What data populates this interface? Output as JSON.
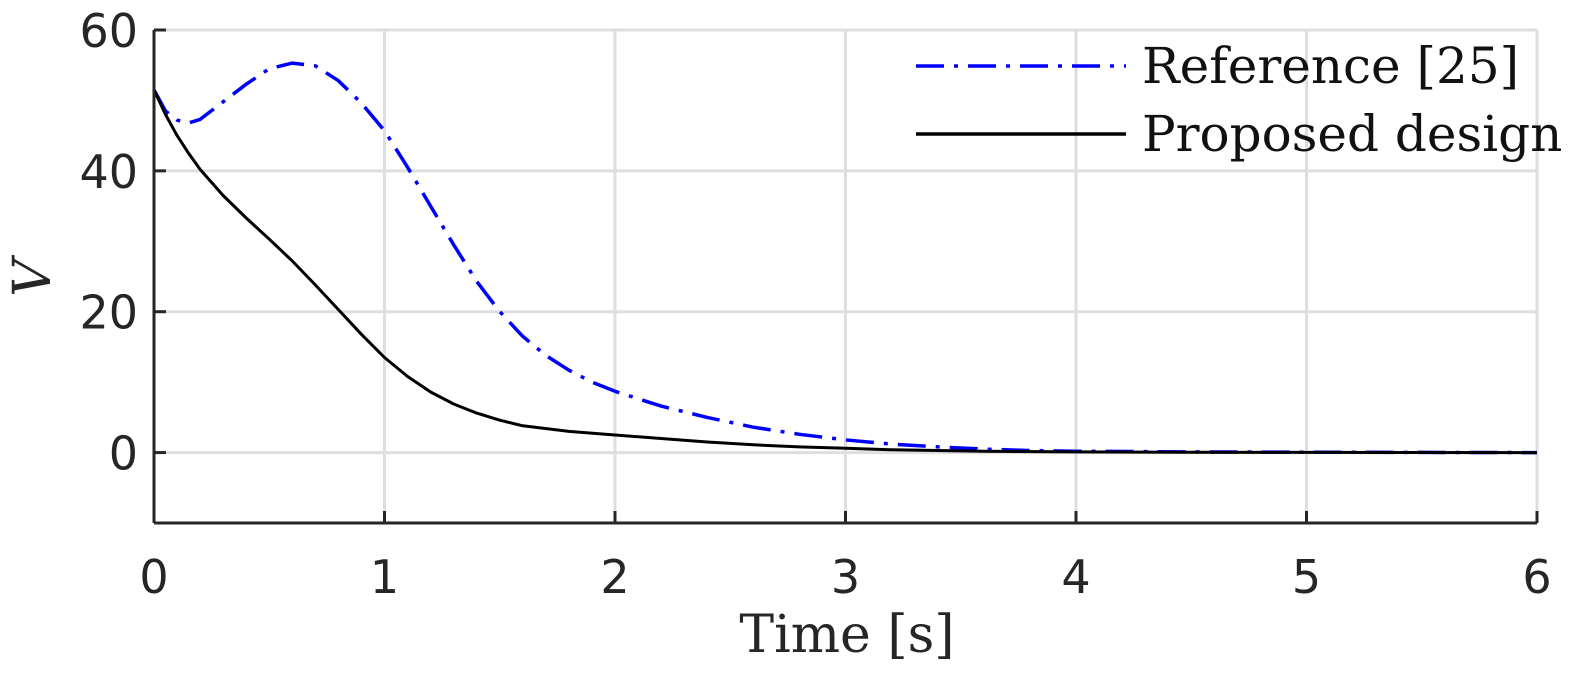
{
  "chart_data": {
    "type": "line",
    "title": "",
    "xlabel": "Time [s]",
    "ylabel": "V",
    "xlim": [
      0,
      6
    ],
    "ylim": [
      -10,
      60
    ],
    "xticks": [
      0,
      1,
      2,
      3,
      4,
      5,
      6
    ],
    "yticks": [
      0,
      20,
      40,
      60
    ],
    "grid": true,
    "legend": "top-right",
    "series": [
      {
        "name": "Reference [25]",
        "color": "#0000ff",
        "style": "dash-dot",
        "x": [
          0,
          0.05,
          0.1,
          0.15,
          0.2,
          0.3,
          0.4,
          0.5,
          0.6,
          0.7,
          0.8,
          0.9,
          1.0,
          1.1,
          1.2,
          1.3,
          1.4,
          1.5,
          1.6,
          1.7,
          1.8,
          1.9,
          2.0,
          2.2,
          2.4,
          2.6,
          2.8,
          3.0,
          3.2,
          3.4,
          3.6,
          3.8,
          4.0,
          4.5,
          5.0,
          5.5,
          6.0
        ],
        "y": [
          51.5,
          48.5,
          47.2,
          46.8,
          47.3,
          49.8,
          52.3,
          54.5,
          55.3,
          54.9,
          52.8,
          49.6,
          45.7,
          40.5,
          35.0,
          29.5,
          24.3,
          20.0,
          16.5,
          13.8,
          11.7,
          10.0,
          8.7,
          6.6,
          5.0,
          3.6,
          2.6,
          1.8,
          1.2,
          0.8,
          0.5,
          0.3,
          0.2,
          0.1,
          0.05,
          0.02,
          0.0
        ]
      },
      {
        "name": "Proposed design",
        "color": "#000000",
        "style": "solid",
        "x": [
          0,
          0.05,
          0.1,
          0.15,
          0.2,
          0.3,
          0.4,
          0.5,
          0.6,
          0.7,
          0.8,
          0.9,
          1.0,
          1.1,
          1.2,
          1.3,
          1.4,
          1.5,
          1.6,
          1.8,
          2.0,
          2.2,
          2.4,
          2.6,
          2.8,
          3.0,
          3.2,
          3.4,
          3.6,
          4.0,
          4.5,
          5.0,
          5.5,
          6.0
        ],
        "y": [
          51.5,
          48.0,
          45.0,
          42.5,
          40.2,
          36.5,
          33.3,
          30.3,
          27.2,
          23.8,
          20.3,
          16.8,
          13.5,
          10.8,
          8.6,
          6.9,
          5.6,
          4.6,
          3.8,
          3.0,
          2.5,
          2.0,
          1.5,
          1.1,
          0.8,
          0.6,
          0.4,
          0.3,
          0.2,
          0.1,
          0.05,
          0.02,
          0.01,
          0.0
        ]
      }
    ]
  }
}
